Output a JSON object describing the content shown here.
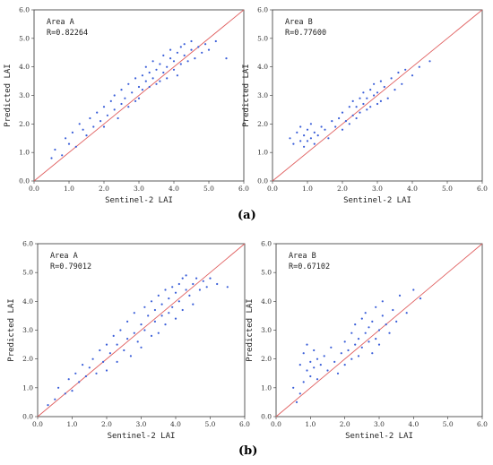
{
  "panel_labels": [
    "(a)",
    "(b)"
  ],
  "styles": {
    "point_color": "#3b5fd9",
    "line_color": "#e06060"
  },
  "chart_data": [
    {
      "type": "scatter",
      "title": "",
      "xlabel": "Sentinel-2 LAI",
      "ylabel": "Predicted LAI",
      "xlim": [
        0,
        6
      ],
      "ylim": [
        0,
        6
      ],
      "xticks": [
        "0.0",
        "1.0",
        "2.0",
        "3.0",
        "4.0",
        "5.0",
        "6.0"
      ],
      "yticks": [
        "0.0",
        "1.0",
        "2.0",
        "3.0",
        "4.0",
        "5.0",
        "6.0"
      ],
      "annotation": [
        "Area A",
        "R=0.82264"
      ],
      "reference_line": "y=x",
      "x": [
        0.5,
        0.6,
        0.8,
        0.9,
        1.0,
        1.1,
        1.2,
        1.3,
        1.4,
        1.5,
        1.6,
        1.7,
        1.8,
        1.9,
        2.0,
        2.0,
        2.1,
        2.2,
        2.3,
        2.3,
        2.4,
        2.5,
        2.5,
        2.6,
        2.7,
        2.7,
        2.8,
        2.9,
        2.9,
        3.0,
        3.0,
        3.1,
        3.1,
        3.2,
        3.2,
        3.3,
        3.3,
        3.4,
        3.4,
        3.5,
        3.5,
        3.6,
        3.6,
        3.7,
        3.7,
        3.8,
        3.8,
        3.9,
        3.9,
        4.0,
        4.0,
        4.1,
        4.1,
        4.2,
        4.2,
        4.3,
        4.3,
        4.4,
        4.5,
        4.5,
        4.6,
        4.7,
        4.8,
        4.9,
        5.0,
        5.2,
        5.5
      ],
      "y": [
        0.8,
        1.1,
        0.9,
        1.5,
        1.3,
        1.7,
        1.2,
        2.0,
        1.8,
        1.6,
        2.2,
        1.9,
        2.4,
        2.1,
        2.6,
        1.9,
        2.3,
        2.8,
        2.5,
        3.0,
        2.2,
        2.7,
        3.2,
        2.9,
        2.6,
        3.4,
        3.1,
        2.8,
        3.6,
        3.3,
        2.9,
        3.7,
        3.2,
        3.5,
        4.0,
        3.3,
        3.8,
        3.6,
        4.2,
        3.4,
        3.9,
        4.1,
        3.5,
        4.4,
        3.8,
        4.0,
        3.6,
        4.3,
        4.6,
        3.9,
        4.2,
        4.5,
        3.7,
        4.7,
        4.1,
        4.4,
        4.8,
        4.2,
        4.6,
        4.9,
        4.3,
        4.7,
        4.5,
        4.8,
        4.6,
        4.9,
        4.3
      ]
    },
    {
      "type": "scatter",
      "title": "",
      "xlabel": "Sentinel-2 LAI",
      "ylabel": "Predicted LAI",
      "xlim": [
        0,
        6
      ],
      "ylim": [
        0,
        6
      ],
      "xticks": [
        "0.0",
        "1.0",
        "2.0",
        "3.0",
        "4.0",
        "5.0",
        "6.0"
      ],
      "yticks": [
        "0.0",
        "1.0",
        "2.0",
        "3.0",
        "4.0",
        "5.0",
        "6.0"
      ],
      "annotation": [
        "Area B",
        "R=0.77600"
      ],
      "reference_line": "y=x",
      "x": [
        0.5,
        0.6,
        0.7,
        0.8,
        0.8,
        0.9,
        0.9,
        1.0,
        1.0,
        1.1,
        1.1,
        1.2,
        1.2,
        1.3,
        1.4,
        1.5,
        1.6,
        1.7,
        1.8,
        1.9,
        2.0,
        2.0,
        2.1,
        2.2,
        2.2,
        2.3,
        2.3,
        2.4,
        2.4,
        2.5,
        2.5,
        2.6,
        2.6,
        2.7,
        2.7,
        2.8,
        2.8,
        2.9,
        2.9,
        3.0,
        3.0,
        3.1,
        3.1,
        3.2,
        3.3,
        3.4,
        3.5,
        3.6,
        3.7,
        3.8,
        4.0,
        4.2,
        4.5
      ],
      "y": [
        1.5,
        1.3,
        1.7,
        1.4,
        1.9,
        1.2,
        1.6,
        1.8,
        1.4,
        1.5,
        2.0,
        1.3,
        1.7,
        1.6,
        1.9,
        1.8,
        1.5,
        2.1,
        1.9,
        2.2,
        2.4,
        1.8,
        2.1,
        2.6,
        2.0,
        2.3,
        2.8,
        2.2,
        2.6,
        2.9,
        2.4,
        2.7,
        3.1,
        2.5,
        2.9,
        3.2,
        2.6,
        3.0,
        3.4,
        2.7,
        3.1,
        3.5,
        2.8,
        3.3,
        2.9,
        3.6,
        3.2,
        3.8,
        3.4,
        3.9,
        3.7,
        4.0,
        4.2
      ]
    },
    {
      "type": "scatter",
      "title": "",
      "xlabel": "Sentinel-2 LAI",
      "ylabel": "Predicted LAI",
      "xlim": [
        0,
        6
      ],
      "ylim": [
        0,
        6
      ],
      "xticks": [
        "0.0",
        "1.0",
        "2.0",
        "3.0",
        "4.0",
        "5.0",
        "6.0"
      ],
      "yticks": [
        "0.0",
        "1.0",
        "2.0",
        "3.0",
        "4.0",
        "5.0",
        "6.0"
      ],
      "annotation": [
        "Area A",
        "R=0.79012"
      ],
      "reference_line": "y=x",
      "x": [
        0.3,
        0.5,
        0.6,
        0.8,
        0.9,
        1.0,
        1.1,
        1.2,
        1.3,
        1.4,
        1.5,
        1.6,
        1.7,
        1.8,
        1.9,
        2.0,
        2.0,
        2.1,
        2.2,
        2.3,
        2.3,
        2.4,
        2.5,
        2.6,
        2.6,
        2.7,
        2.8,
        2.8,
        2.9,
        3.0,
        3.0,
        3.1,
        3.1,
        3.2,
        3.3,
        3.3,
        3.4,
        3.4,
        3.5,
        3.5,
        3.6,
        3.6,
        3.7,
        3.7,
        3.8,
        3.8,
        3.9,
        3.9,
        4.0,
        4.0,
        4.1,
        4.1,
        4.2,
        4.2,
        4.3,
        4.3,
        4.4,
        4.5,
        4.5,
        4.6,
        4.7,
        4.8,
        4.9,
        5.0,
        5.2,
        5.5
      ],
      "y": [
        0.4,
        0.6,
        1.0,
        0.8,
        1.3,
        0.9,
        1.5,
        1.2,
        1.8,
        1.4,
        1.7,
        2.0,
        1.5,
        2.3,
        1.9,
        2.5,
        1.6,
        2.2,
        2.8,
        1.9,
        2.5,
        3.0,
        2.3,
        2.7,
        3.3,
        2.1,
        2.9,
        3.6,
        2.6,
        3.2,
        2.4,
        3.8,
        3.0,
        3.5,
        2.8,
        4.0,
        3.3,
        3.7,
        2.9,
        4.2,
        3.5,
        3.9,
        4.4,
        3.2,
        4.1,
        3.6,
        4.5,
        3.8,
        4.3,
        3.4,
        4.6,
        4.0,
        4.8,
        3.7,
        4.4,
        4.9,
        4.2,
        4.6,
        3.9,
        4.8,
        4.4,
        4.7,
        4.5,
        4.8,
        4.6,
        4.5
      ]
    },
    {
      "type": "scatter",
      "title": "",
      "xlabel": "Sentinel-2 LAI",
      "ylabel": "Predicted LAI",
      "xlim": [
        0,
        6
      ],
      "ylim": [
        0,
        6
      ],
      "xticks": [
        "0.0",
        "1.0",
        "2.0",
        "3.0",
        "4.0",
        "5.0",
        "6.0"
      ],
      "yticks": [
        "0.0",
        "1.0",
        "2.0",
        "3.0",
        "4.0",
        "5.0",
        "6.0"
      ],
      "annotation": [
        "Area B",
        "R=0.67102"
      ],
      "reference_line": "y=x",
      "x": [
        0.5,
        0.6,
        0.7,
        0.7,
        0.8,
        0.8,
        0.9,
        0.9,
        1.0,
        1.0,
        1.1,
        1.1,
        1.2,
        1.2,
        1.3,
        1.4,
        1.5,
        1.6,
        1.7,
        1.8,
        1.9,
        2.0,
        2.0,
        2.1,
        2.2,
        2.2,
        2.3,
        2.3,
        2.4,
        2.4,
        2.5,
        2.5,
        2.6,
        2.6,
        2.7,
        2.7,
        2.8,
        2.8,
        2.9,
        2.9,
        3.0,
        3.0,
        3.1,
        3.1,
        3.2,
        3.3,
        3.4,
        3.5,
        3.6,
        3.8,
        4.0,
        4.2
      ],
      "y": [
        1.0,
        0.5,
        1.8,
        0.8,
        2.2,
        1.2,
        1.6,
        2.5,
        1.9,
        1.4,
        2.3,
        1.7,
        2.0,
        1.3,
        1.8,
        2.1,
        1.6,
        2.4,
        1.9,
        1.5,
        2.2,
        2.6,
        1.8,
        2.3,
        2.9,
        2.0,
        2.5,
        3.2,
        2.1,
        2.7,
        3.4,
        2.4,
        2.9,
        3.6,
        2.6,
        3.1,
        2.2,
        3.3,
        2.7,
        3.8,
        3.0,
        2.5,
        3.5,
        4.0,
        3.2,
        2.9,
        3.7,
        3.3,
        4.2,
        3.6,
        4.4,
        4.1
      ]
    }
  ]
}
